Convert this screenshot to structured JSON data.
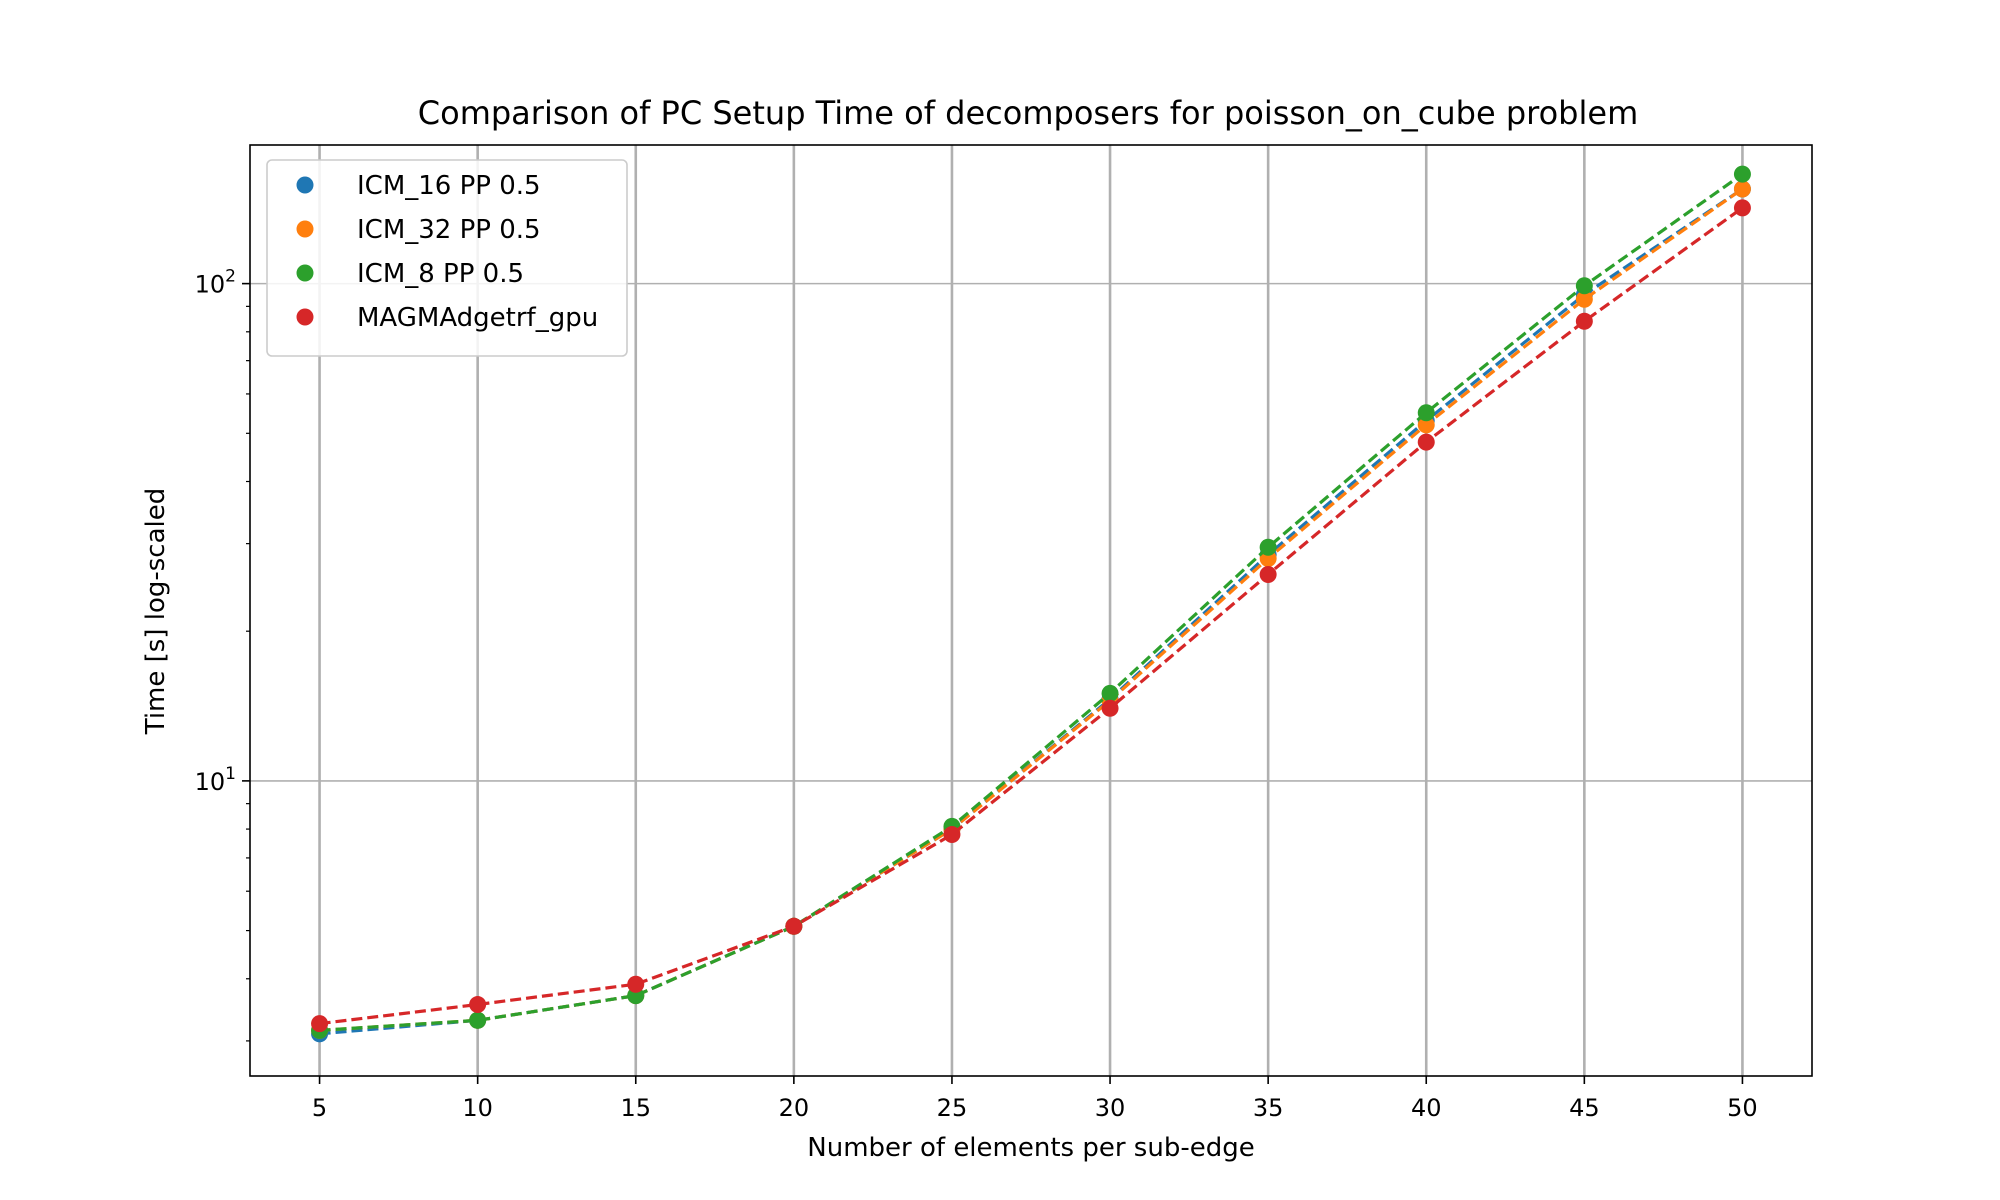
{
  "chart_data": {
    "type": "line",
    "title": "Comparison of PC Setup Time of decomposers for poisson_on_cube problem",
    "xlabel": "Number of elements per sub-edge",
    "ylabel": "Time [s] log-scaled",
    "x": [
      5,
      10,
      15,
      20,
      25,
      30,
      35,
      40,
      45,
      50
    ],
    "x_ticks": [
      "5",
      "10",
      "15",
      "20",
      "25",
      "30",
      "35",
      "40",
      "45",
      "50"
    ],
    "xlim": [
      2.8,
      52.2
    ],
    "y_scale": "log",
    "ylim": [
      2.55,
      190
    ],
    "y_ticks": [
      {
        "value": 10,
        "base": "10",
        "exp": "1"
      },
      {
        "value": 100,
        "base": "10",
        "exp": "2"
      }
    ],
    "grid": true,
    "legend_position": "top-left",
    "line_style": "dashed",
    "series": [
      {
        "name": "ICM_16 PP 0.5",
        "color": "#1f77b4",
        "values": [
          3.1,
          3.3,
          3.7,
          5.1,
          8.0,
          14.6,
          28.5,
          53.0,
          95.0,
          155.0
        ]
      },
      {
        "name": "ICM_32 PP 0.5",
        "color": "#ff7f0e",
        "values": [
          3.15,
          3.3,
          3.7,
          5.1,
          8.0,
          14.5,
          28.0,
          52.0,
          93.0,
          155.0
        ]
      },
      {
        "name": "ICM_8 PP 0.5",
        "color": "#2ca02c",
        "values": [
          3.15,
          3.3,
          3.7,
          5.1,
          8.1,
          15.0,
          29.5,
          55.0,
          99.0,
          166.0
        ]
      },
      {
        "name": "MAGMAdgetrf_gpu",
        "color": "#d62728",
        "values": [
          3.25,
          3.55,
          3.9,
          5.1,
          7.8,
          14.0,
          26.0,
          48.0,
          84.0,
          142.0
        ]
      }
    ]
  }
}
